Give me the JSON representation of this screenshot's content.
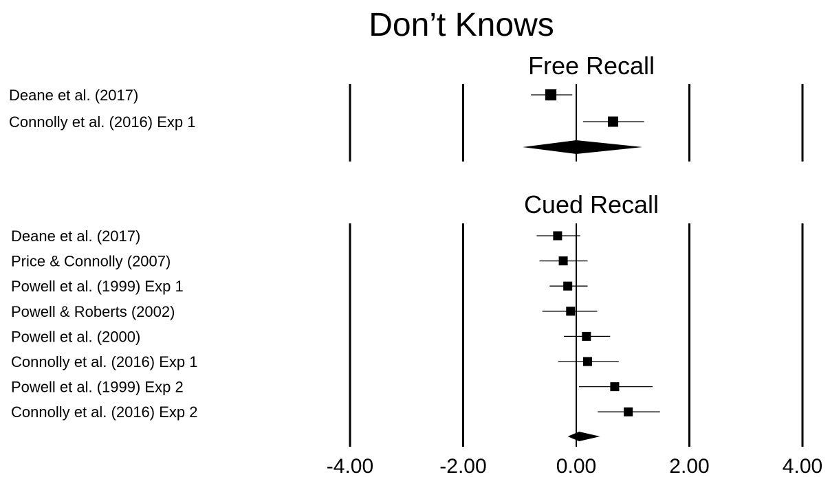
{
  "chart_data": {
    "type": "forest",
    "title": "Don’t Knows",
    "xlim": [
      -4,
      4
    ],
    "x_ticks": [
      -4,
      -2,
      0,
      2,
      4
    ],
    "x_tick_labels": [
      "-4.00",
      "-2.00",
      "0.00",
      "2.00",
      "4.00"
    ],
    "panels": [
      {
        "name": "Free Recall",
        "studies": [
          {
            "label": "Deane et al. (2017)",
            "effect": -0.45,
            "ci": [
              -0.8,
              -0.07
            ],
            "weight": 1.25
          },
          {
            "label": "Connolly et al. (2016) Exp 1",
            "effect": 0.65,
            "ci": [
              0.12,
              1.2
            ],
            "weight": 1.15
          }
        ],
        "summary": {
          "effect": 0.0,
          "ci": [
            -0.95,
            1.17
          ]
        }
      },
      {
        "name": "Cued Recall",
        "studies": [
          {
            "label": "Deane et al. (2017)",
            "effect": -0.33,
            "ci": [
              -0.7,
              0.07
            ],
            "weight": 1.0
          },
          {
            "label": "Price & Connolly (2007)",
            "effect": -0.23,
            "ci": [
              -0.65,
              0.2
            ],
            "weight": 1.0
          },
          {
            "label": "Powell et al. (1999) Exp 1",
            "effect": -0.15,
            "ci": [
              -0.47,
              0.2
            ],
            "weight": 1.0
          },
          {
            "label": "Powell & Roberts (2002)",
            "effect": -0.1,
            "ci": [
              -0.6,
              0.37
            ],
            "weight": 1.0
          },
          {
            "label": "Powell et al. (2000)",
            "effect": 0.18,
            "ci": [
              -0.22,
              0.6
            ],
            "weight": 1.0
          },
          {
            "label": "Connolly et al. (2016) Exp 1",
            "effect": 0.2,
            "ci": [
              -0.32,
              0.75
            ],
            "weight": 1.0
          },
          {
            "label": "Powell et al. (1999) Exp 2",
            "effect": 0.68,
            "ci": [
              0.05,
              1.35
            ],
            "weight": 1.0
          },
          {
            "label": "Connolly et al. (2016) Exp 2",
            "effect": 0.92,
            "ci": [
              0.38,
              1.48
            ],
            "weight": 1.0
          }
        ],
        "summary": {
          "effect": 0.05,
          "ci": [
            -0.15,
            0.42
          ]
        }
      }
    ]
  }
}
